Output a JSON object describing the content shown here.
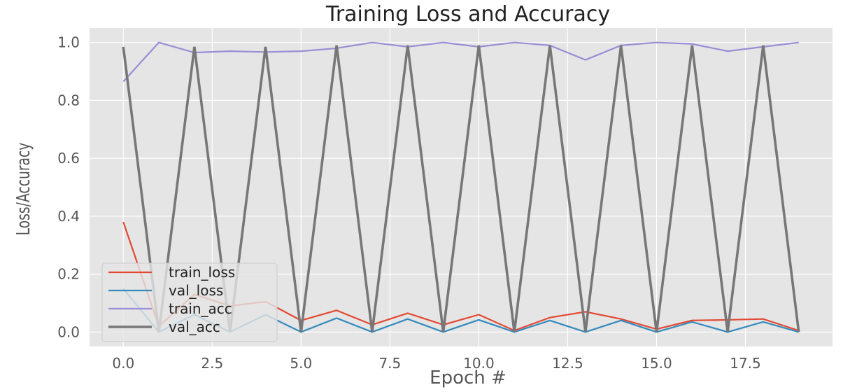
{
  "chart_data": {
    "type": "line",
    "title": "Training Loss and Accuracy",
    "xlabel": "Epoch #",
    "ylabel": "Loss/Accuracy",
    "xlim": [
      -0.95,
      19.95
    ],
    "ylim": [
      -0.05,
      1.05
    ],
    "xticks": [
      0.0,
      2.5,
      5.0,
      7.5,
      10.0,
      12.5,
      15.0,
      17.5
    ],
    "xtick_labels": [
      "0.0",
      "2.5",
      "5.0",
      "7.5",
      "10.0",
      "12.5",
      "15.0",
      "17.5"
    ],
    "yticks": [
      0.0,
      0.2,
      0.4,
      0.6,
      0.8,
      1.0
    ],
    "ytick_labels": [
      "0.0",
      "0.2",
      "0.4",
      "0.6",
      "0.8",
      "1.0"
    ],
    "grid": true,
    "legend_position": "lower-left",
    "x": [
      0,
      1,
      2,
      3,
      4,
      5,
      6,
      7,
      8,
      9,
      10,
      11,
      12,
      13,
      14,
      15,
      16,
      17,
      18,
      19
    ],
    "series": [
      {
        "name": "train_loss",
        "color": "#E24A33",
        "values": [
          0.38,
          0.02,
          0.13,
          0.09,
          0.105,
          0.04,
          0.075,
          0.025,
          0.065,
          0.025,
          0.06,
          0.005,
          0.05,
          0.07,
          0.045,
          0.01,
          0.04,
          0.042,
          0.045,
          0.005
        ]
      },
      {
        "name": "val_loss",
        "color": "#348ABD",
        "values": [
          0.15,
          0.0,
          0.06,
          0.0,
          0.06,
          0.0,
          0.048,
          0.0,
          0.045,
          0.0,
          0.042,
          0.0,
          0.04,
          0.0,
          0.04,
          0.0,
          0.035,
          0.0,
          0.035,
          0.0
        ]
      },
      {
        "name": "train_acc",
        "color": "#988ED5",
        "values": [
          0.865,
          1.0,
          0.965,
          0.97,
          0.967,
          0.97,
          0.98,
          1.0,
          0.985,
          1.0,
          0.985,
          1.0,
          0.99,
          0.94,
          0.99,
          1.0,
          0.995,
          0.97,
          0.985,
          1.0
        ]
      },
      {
        "name": "val_acc",
        "color": "#777777",
        "values": [
          0.985,
          0.0,
          0.985,
          0.0,
          0.985,
          0.0,
          0.99,
          0.0,
          0.99,
          0.0,
          0.99,
          0.0,
          0.99,
          0.0,
          0.99,
          0.0,
          0.99,
          0.0,
          0.99,
          0.0
        ]
      }
    ]
  },
  "colors": {
    "plot_background": "#E5E5E5",
    "grid": "#FFFFFF",
    "legend_background": "#E5E5E5",
    "legend_border": "#CCCCCC"
  }
}
